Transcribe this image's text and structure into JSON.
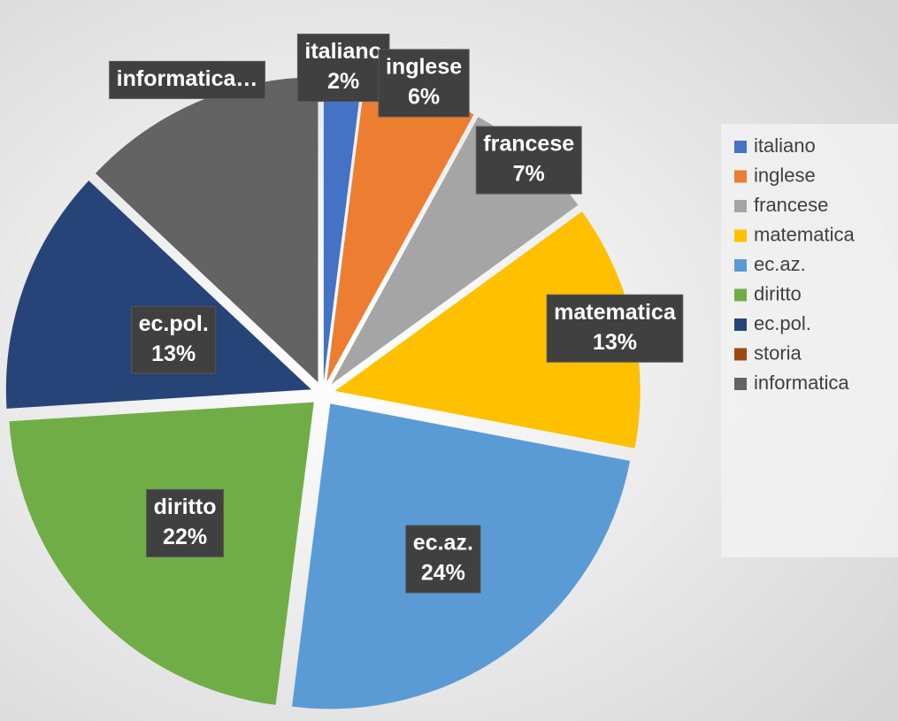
{
  "chart_data": {
    "type": "pie",
    "categories": [
      "italiano",
      "inglese",
      "francese",
      "matematica",
      "ec.az.",
      "diritto",
      "ec.pol.",
      "storia",
      "informatica"
    ],
    "values": [
      2,
      6,
      7,
      13,
      24,
      22,
      13,
      0,
      13
    ],
    "value_labels": [
      "2%",
      "6%",
      "7%",
      "13%",
      "24%",
      "22%",
      "13%",
      null,
      null
    ],
    "truncated_labels": {
      "8": "informatica…"
    },
    "colors": [
      "#4472c4",
      "#ed7d31",
      "#a5a5a5",
      "#ffc000",
      "#5b9bd5",
      "#70ad47",
      "#264478",
      "#9e480e",
      "#636363"
    ],
    "legend": "right"
  }
}
